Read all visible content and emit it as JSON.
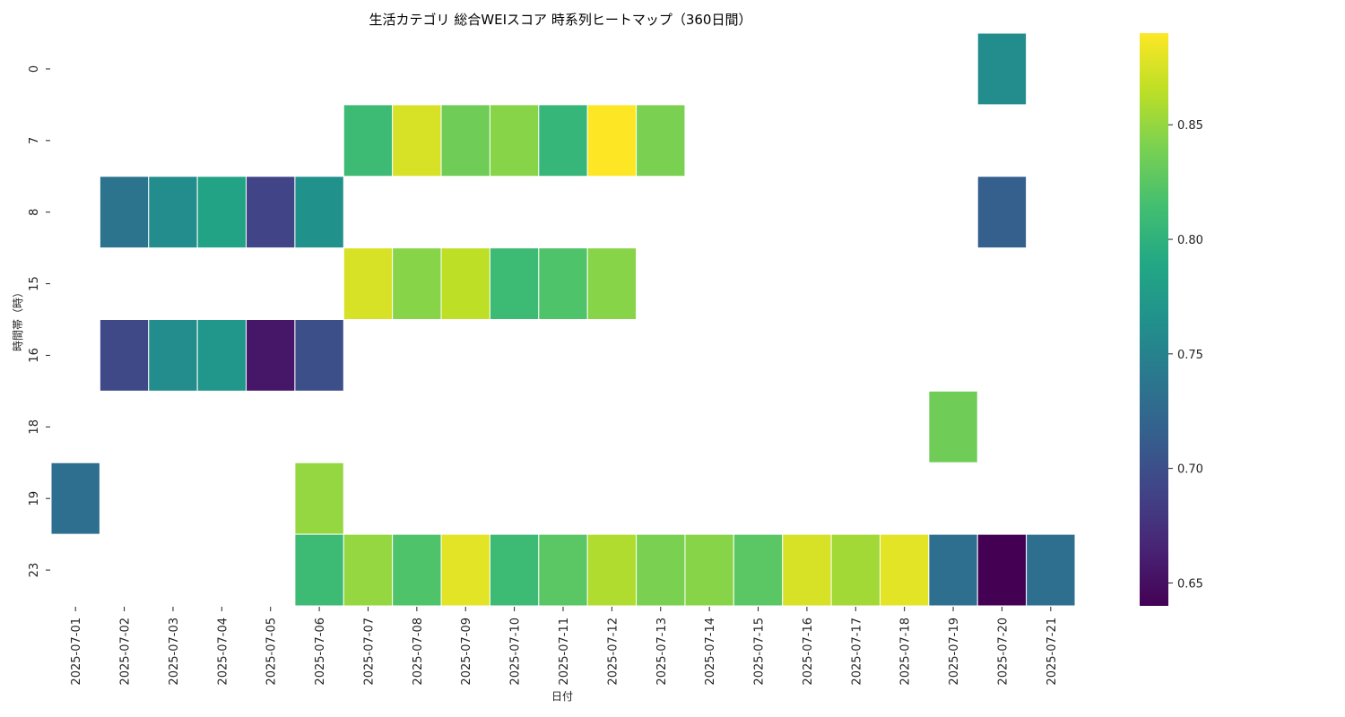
{
  "chart_data": {
    "type": "heatmap",
    "title": "生活カテゴリ 総合WEIスコア 時系列ヒートマップ（360日間）",
    "xlabel": "日付",
    "ylabel": "時間帯（時）",
    "x": [
      "2025-07-01",
      "2025-07-02",
      "2025-07-03",
      "2025-07-04",
      "2025-07-05",
      "2025-07-06",
      "2025-07-07",
      "2025-07-08",
      "2025-07-09",
      "2025-07-10",
      "2025-07-11",
      "2025-07-12",
      "2025-07-13",
      "2025-07-14",
      "2025-07-15",
      "2025-07-16",
      "2025-07-17",
      "2025-07-18",
      "2025-07-19",
      "2025-07-20",
      "2025-07-21"
    ],
    "y": [
      "0",
      "7",
      "8",
      "15",
      "16",
      "18",
      "19",
      "23"
    ],
    "values": [
      [
        null,
        null,
        null,
        null,
        null,
        null,
        null,
        null,
        null,
        null,
        null,
        null,
        null,
        null,
        null,
        null,
        null,
        null,
        null,
        0.76,
        null
      ],
      [
        null,
        null,
        null,
        null,
        null,
        null,
        0.81,
        0.875,
        0.835,
        0.845,
        0.805,
        0.89,
        0.84,
        null,
        null,
        null,
        null,
        null,
        null,
        null,
        null
      ],
      [
        null,
        0.735,
        0.76,
        0.785,
        0.69,
        0.765,
        null,
        null,
        null,
        null,
        null,
        null,
        null,
        null,
        null,
        null,
        null,
        null,
        null,
        0.715,
        null
      ],
      [
        null,
        null,
        null,
        null,
        null,
        null,
        0.875,
        0.845,
        0.865,
        0.81,
        0.82,
        0.845,
        null,
        null,
        null,
        null,
        null,
        null,
        null,
        null,
        null
      ],
      [
        null,
        0.695,
        0.76,
        0.77,
        0.655,
        0.7,
        null,
        null,
        null,
        null,
        null,
        null,
        null,
        null,
        null,
        null,
        null,
        null,
        null,
        null,
        null
      ],
      [
        null,
        null,
        null,
        null,
        null,
        null,
        null,
        null,
        null,
        null,
        null,
        null,
        null,
        null,
        null,
        null,
        null,
        null,
        0.835,
        null,
        null
      ],
      [
        0.73,
        null,
        null,
        null,
        null,
        0.85,
        null,
        null,
        null,
        null,
        null,
        null,
        null,
        null,
        null,
        null,
        null,
        null,
        null,
        null,
        null
      ],
      [
        null,
        null,
        null,
        null,
        null,
        0.81,
        0.85,
        0.82,
        0.88,
        0.81,
        0.825,
        0.86,
        0.84,
        0.845,
        0.825,
        0.875,
        0.855,
        0.88,
        0.73,
        0.64,
        0.73
      ]
    ],
    "colormap": "viridis",
    "colorbar": {
      "min": 0.64,
      "max": 0.89,
      "ticks": [
        "0.65",
        "0.70",
        "0.75",
        "0.80",
        "0.85"
      ]
    }
  }
}
